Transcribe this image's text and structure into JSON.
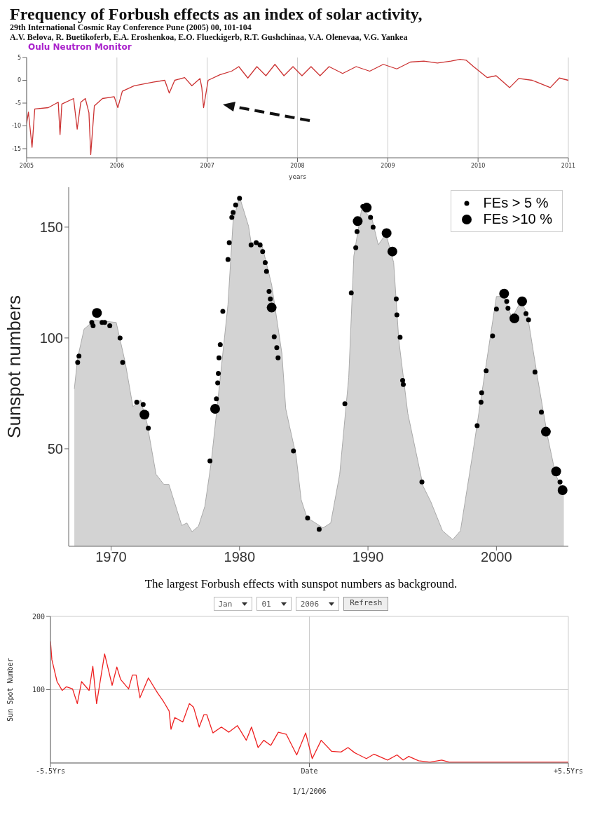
{
  "chart_data": [
    {
      "type": "line",
      "title": "Oulu Neutron Monitor",
      "xlabel": "years",
      "annotations": [
        "Frequency of Forbush effects as an index of solar activity,",
        "29th International Cosmic Ray Conference Pune (2005) 00, 101-104",
        "A.V. Belova, R. Buetikoferb, E.A. Eroshenkoa, E.O. Flueckigerb, R.T. Gushchinaa, V.A. Olenevaa, V.G. Yankea"
      ],
      "x": [
        2005.0,
        2005.02,
        2005.06,
        2005.09,
        2005.24,
        2005.35,
        2005.37,
        2005.39,
        2005.52,
        2005.56,
        2005.6,
        2005.65,
        2005.69,
        2005.71,
        2005.75,
        2005.84,
        2005.97,
        2006.01,
        2006.06,
        2006.19,
        2006.4,
        2006.53,
        2006.58,
        2006.64,
        2006.75,
        2006.83,
        2006.92,
        2006.94,
        2006.96,
        2007.01,
        2007.14,
        2007.27,
        2007.35,
        2007.45,
        2007.55,
        2007.65,
        2007.75,
        2007.85,
        2007.95,
        2008.05,
        2008.15,
        2008.25,
        2008.35,
        2008.5,
        2008.65,
        2008.8,
        2008.95,
        2009.1,
        2009.25,
        2009.4,
        2009.55,
        2009.7,
        2009.8,
        2009.87,
        2009.95,
        2010.1,
        2010.2,
        2010.35,
        2010.45,
        2010.6,
        2010.8,
        2010.9,
        2011.0
      ],
      "series": [
        {
          "color": "#cc3333",
          "values": [
            -9.5,
            -7,
            -14.7,
            -6.3,
            -6,
            -4.8,
            -11.9,
            -5.2,
            -4,
            -10.7,
            -4.8,
            -4,
            -7.1,
            -16.3,
            -5.6,
            -4,
            -3.6,
            -6,
            -2.4,
            -1.2,
            -0.4,
            0,
            -2.8,
            0,
            0.6,
            -1.2,
            0.4,
            -1.6,
            -6,
            0,
            1.2,
            2,
            3,
            0.5,
            3,
            1,
            3.5,
            1,
            3,
            1,
            3,
            1,
            3,
            1.5,
            3,
            2,
            3.5,
            2.5,
            4,
            4.2,
            3.8,
            4.2,
            4.6,
            4.4,
            3,
            0.6,
            1,
            -1.6,
            0.4,
            0,
            -1.6,
            0.5,
            0
          ]
        }
      ],
      "xlim": [
        2005,
        2011
      ],
      "xticks": [
        2005,
        2006,
        2007,
        2008,
        2009,
        2010,
        2011
      ],
      "ylim": [
        -17,
        5
      ],
      "yticks": [
        5,
        0,
        -5,
        -10,
        -15
      ],
      "grid": "x"
    },
    {
      "type": "scatter",
      "ylabel": "Sunspot numbers",
      "legend": "top right",
      "annotations": [
        "The largest Forbush effects with sunspot numbers as background."
      ],
      "series": [
        {
          "type": "area",
          "color": "#d3d3d3",
          "x": [
            1967.14,
            1967.4,
            1967.9,
            1968.7,
            1970.4,
            1971.1,
            1971.7,
            1972.3,
            1972.8,
            1973.5,
            1974.1,
            1974.5,
            1975.5,
            1975.9,
            1976.3,
            1976.8,
            1977.3,
            1977.8,
            1978.5,
            1979.1,
            1979.5,
            1980.0,
            1980.7,
            1980.9,
            1981.7,
            1982.5,
            1983.3,
            1983.6,
            1983.9,
            1984.4,
            1984.8,
            1985.25,
            1986.5,
            1987.1,
            1987.8,
            1988.5,
            1988.9,
            1989.5,
            1990.3,
            1990.8,
            1991.4,
            1992.0,
            1992.4,
            1993.1,
            1994.3,
            1994.9,
            1995.8,
            1996.6,
            1997.2,
            1998.2,
            1999.2,
            2000.0,
            2000.6,
            2001.2,
            2001.9,
            2002.4,
            2003.2,
            2004.0,
            2004.6,
            2005.25
          ],
          "values": [
            77,
            91,
            104,
            108,
            107,
            89,
            69,
            72,
            61.5,
            38.5,
            34,
            34,
            15.4,
            16.5,
            12.6,
            15,
            24,
            44,
            82,
            115,
            152.7,
            163.7,
            150.5,
            143,
            143,
            124,
            93,
            68,
            60,
            47,
            27,
            19,
            14.3,
            16.5,
            38.5,
            82,
            137,
            158,
            154,
            142,
            147,
            134,
            99,
            66,
            33,
            26,
            13,
            9,
            13,
            49.5,
            88,
            118.7,
            118.7,
            109,
            116.5,
            111,
            82,
            55,
            38.5,
            30
          ]
        },
        {
          "name": "FEs > 5 %",
          "color": "#000000",
          "marker": "circle",
          "x": [
            1967.4,
            1967.5,
            1968.5,
            1968.6,
            1969.3,
            1969.5,
            1969.9,
            1970.7,
            1970.9,
            1972.0,
            1972.5,
            1972.9,
            1977.7,
            1978.2,
            1978.3,
            1978.35,
            1978.4,
            1978.5,
            1978.7,
            1979.1,
            1979.2,
            1979.4,
            1979.5,
            1979.7,
            1980.0,
            1980.9,
            1981.3,
            1981.6,
            1981.8,
            1982.0,
            1982.1,
            1982.3,
            1982.4,
            1982.7,
            1982.9,
            1983.0,
            1984.2,
            1985.3,
            1986.2,
            1988.2,
            1988.7,
            1989.05,
            1989.15,
            1989.6,
            1990.2,
            1990.4,
            1992.2,
            1992.25,
            1992.5,
            1992.7,
            1992.75,
            1994.2,
            1998.5,
            1998.8,
            1998.85,
            1999.2,
            1999.7,
            2000.0,
            2000.8,
            2000.9,
            2002.3,
            2002.5,
            2003.0,
            2003.5,
            2004.95
          ],
          "values": [
            89,
            91.8,
            107,
            105.5,
            107,
            107,
            105.5,
            100,
            89,
            71,
            70,
            59.3,
            44.5,
            72.5,
            79.7,
            84,
            91,
            97,
            112,
            135.4,
            143,
            154.4,
            156.6,
            160,
            163,
            142,
            143,
            142,
            139,
            134,
            130,
            121,
            117.6,
            100.5,
            95.6,
            91,
            49,
            18.7,
            13.7,
            70.3,
            120.3,
            140.7,
            148,
            159.3,
            154.4,
            150,
            117.6,
            110.4,
            100.3,
            80.8,
            79,
            35,
            60.4,
            71,
            75.3,
            85.2,
            100.9,
            113,
            116.5,
            113.4,
            111,
            108.2,
            84.6,
            66.5,
            35
          ]
        },
        {
          "name": "FEs >10 %",
          "color": "#000000",
          "marker": "circle",
          "x": [
            1968.9,
            1972.6,
            1978.1,
            1982.5,
            1989.2,
            1989.9,
            1991.45,
            1991.9,
            2000.6,
            2001.4,
            2002.0,
            2003.85,
            2004.65,
            2005.15
          ],
          "values": [
            111.3,
            65.4,
            68,
            113.7,
            152.7,
            158.8,
            147.3,
            139,
            120,
            108.8,
            116.5,
            57.7,
            39.8,
            31.3
          ]
        }
      ],
      "xlim": [
        1966.7,
        2005.6
      ],
      "xticks": [
        1970,
        1980,
        1990,
        2000
      ],
      "ylim": [
        6,
        168
      ],
      "yticks": [
        50,
        100,
        150
      ]
    },
    {
      "type": "line",
      "ylabel": "Sun Spot Number",
      "xlabel": "1/1/2006",
      "annotations": [
        "Jan",
        "01",
        "2006",
        "Refresh"
      ],
      "x": [
        -5.5,
        -5.47,
        -5.36,
        -5.25,
        -5.16,
        -5.03,
        -4.93,
        -4.84,
        -4.68,
        -4.6,
        -4.52,
        -4.35,
        -4.19,
        -4.09,
        -4.01,
        -3.84,
        -3.76,
        -3.68,
        -3.6,
        -3.42,
        -3.23,
        -3.1,
        -2.98,
        -2.94,
        -2.86,
        -2.69,
        -2.55,
        -2.46,
        -2.34,
        -2.24,
        -2.18,
        -2.05,
        -1.87,
        -1.71,
        -1.53,
        -1.34,
        -1.23,
        -1.09,
        -0.97,
        -0.82,
        -0.66,
        -0.49,
        -0.27,
        -0.08,
        0.06,
        0.25,
        0.47,
        0.67,
        0.82,
        0.96,
        1.21,
        1.37,
        1.66,
        1.86,
        1.99,
        2.11,
        2.32,
        2.56,
        2.81,
        2.97,
        5.5
      ],
      "series": [
        {
          "color": "#ee2222",
          "values": [
            166,
            141,
            111,
            99,
            104,
            101,
            81,
            111,
            99,
            132,
            81,
            149,
            106,
            131,
            114,
            101,
            120,
            120,
            89,
            116,
            96,
            84,
            71,
            46,
            62,
            56,
            81,
            76,
            49,
            66,
            66,
            41,
            49,
            42,
            51,
            31,
            49,
            21,
            31,
            24,
            42,
            39,
            11,
            41,
            6,
            31,
            16,
            15,
            21,
            14,
            6,
            12,
            4,
            11,
            4,
            9,
            3,
            1,
            4,
            1,
            1
          ]
        }
      ],
      "xlim": [
        -5.5,
        5.5
      ],
      "xticks": [
        {
          "value": -5.5,
          "label": "-5.5Yrs"
        },
        {
          "value": 0,
          "label": "Date"
        },
        {
          "value": 5.5,
          "label": "+5.5Yrs"
        }
      ],
      "ylim": [
        0,
        200
      ],
      "yticks": [
        100,
        200
      ],
      "grid": true
    }
  ]
}
